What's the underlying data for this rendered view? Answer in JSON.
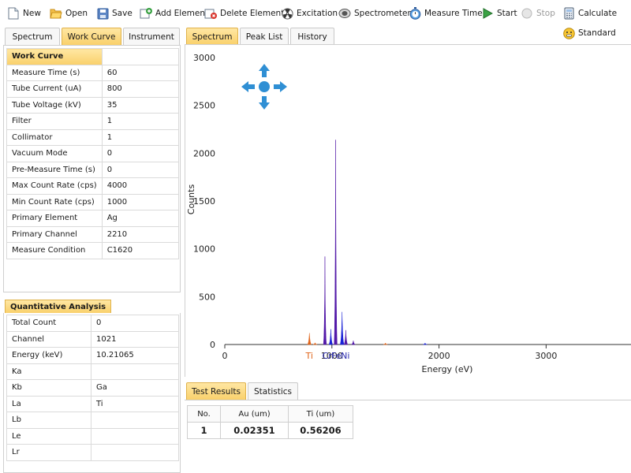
{
  "toolbar": {
    "items": [
      {
        "label": "New",
        "icon": "new-file-icon"
      },
      {
        "label": "Open",
        "icon": "folder-open-icon"
      },
      {
        "label": "Save",
        "icon": "save-icon"
      },
      {
        "label": "Add Element",
        "icon": "add-element-icon"
      },
      {
        "label": "Delete Element",
        "icon": "delete-element-icon"
      },
      {
        "label": "Excitation",
        "icon": "radiation-icon"
      },
      {
        "label": "Spectrometer",
        "icon": "spectrometer-icon"
      },
      {
        "label": "Measure Time",
        "icon": "stopwatch-icon"
      },
      {
        "label": "Start",
        "icon": "play-icon"
      },
      {
        "label": "Stop",
        "icon": "stop-icon",
        "disabled": true
      },
      {
        "label": "Calculate",
        "icon": "calculator-icon"
      },
      {
        "label": "Standard",
        "icon": "smiley-icon"
      }
    ]
  },
  "left_tabs": [
    "Spectrum",
    "Work Curve",
    "Instrument"
  ],
  "left_active_tab": "Work Curve",
  "work_curve": {
    "header": "Work Curve",
    "rows": [
      {
        "label": "Measure Time (s)",
        "value": "60"
      },
      {
        "label": "Tube Current (uA)",
        "value": "800"
      },
      {
        "label": "Tube Voltage (kV)",
        "value": "35"
      },
      {
        "label": "Filter",
        "value": "1"
      },
      {
        "label": "Collimator",
        "value": "1"
      },
      {
        "label": "Vacuum Mode",
        "value": "0"
      },
      {
        "label": "Pre-Measure Time (s)",
        "value": "0"
      },
      {
        "label": "Max Count Rate (cps)",
        "value": "4000"
      },
      {
        "label": "Min Count Rate (cps)",
        "value": "1000"
      },
      {
        "label": "Primary Element",
        "value": "Ag"
      },
      {
        "label": "Primary Channel",
        "value": "2210"
      },
      {
        "label": "Measure Condition",
        "value": "C1620"
      }
    ]
  },
  "quantitative": {
    "title": "Quantitative Analysis",
    "rows": [
      {
        "label": "Total Count",
        "value": "0"
      },
      {
        "label": "Channel",
        "value": "1021"
      },
      {
        "label": "Energy (keV)",
        "value": "10.21065"
      },
      {
        "label": "Ka",
        "value": ""
      },
      {
        "label": "Kb",
        "value": "Ga"
      },
      {
        "label": "La",
        "value": "Ti"
      },
      {
        "label": "Lb",
        "value": ""
      },
      {
        "label": "Le",
        "value": ""
      },
      {
        "label": "Lr",
        "value": ""
      }
    ]
  },
  "main_tabs": [
    "Spectrum",
    "Peak List",
    "History"
  ],
  "main_active_tab": "Spectrum",
  "chart_data": {
    "type": "area",
    "xlabel": "Energy (eV)",
    "ylabel": "Counts",
    "xlim": [
      0,
      3800
    ],
    "ylim": [
      0,
      3000
    ],
    "x_ticks": [
      0,
      1000,
      2000,
      3000
    ],
    "y_ticks": [
      0,
      500,
      1000,
      1500,
      2000,
      2500,
      3000
    ],
    "grid": false,
    "peaks": [
      {
        "x": 790,
        "y": 120,
        "color": "#e0641a"
      },
      {
        "x": 843,
        "y": 18,
        "color": "#e0641a"
      },
      {
        "x": 935,
        "y": 920,
        "color": "#5218a8"
      },
      {
        "x": 990,
        "y": 160,
        "color": "#1a22d8"
      },
      {
        "x": 1035,
        "y": 2140,
        "color": "#5218a8"
      },
      {
        "x": 1095,
        "y": 340,
        "color": "#1a22d8"
      },
      {
        "x": 1130,
        "y": 150,
        "color": "#5218a8"
      },
      {
        "x": 1200,
        "y": 40,
        "color": "#5218a8"
      },
      {
        "x": 1500,
        "y": 15,
        "color": "#e0641a"
      },
      {
        "x": 1870,
        "y": 15,
        "color": "#1a22d8"
      }
    ],
    "element_markers": [
      {
        "label": "Ti",
        "x": 790,
        "color": "#e0641a"
      },
      {
        "label": "Cr",
        "x": 955,
        "color": "#2a2ab0"
      },
      {
        "label": "Fe",
        "x": 1040,
        "color": "#2a2ab0"
      },
      {
        "label": "Ni",
        "x": 1125,
        "color": "#2a2ab0"
      }
    ]
  },
  "bottom_tabs": [
    "Test Results",
    "Statistics"
  ],
  "bottom_active_tab": "Test Results",
  "results": {
    "headers": [
      "No.",
      "Au (um)",
      "Ti (um)"
    ],
    "rows": [
      [
        "1",
        "0.02351",
        "0.56206"
      ]
    ]
  }
}
